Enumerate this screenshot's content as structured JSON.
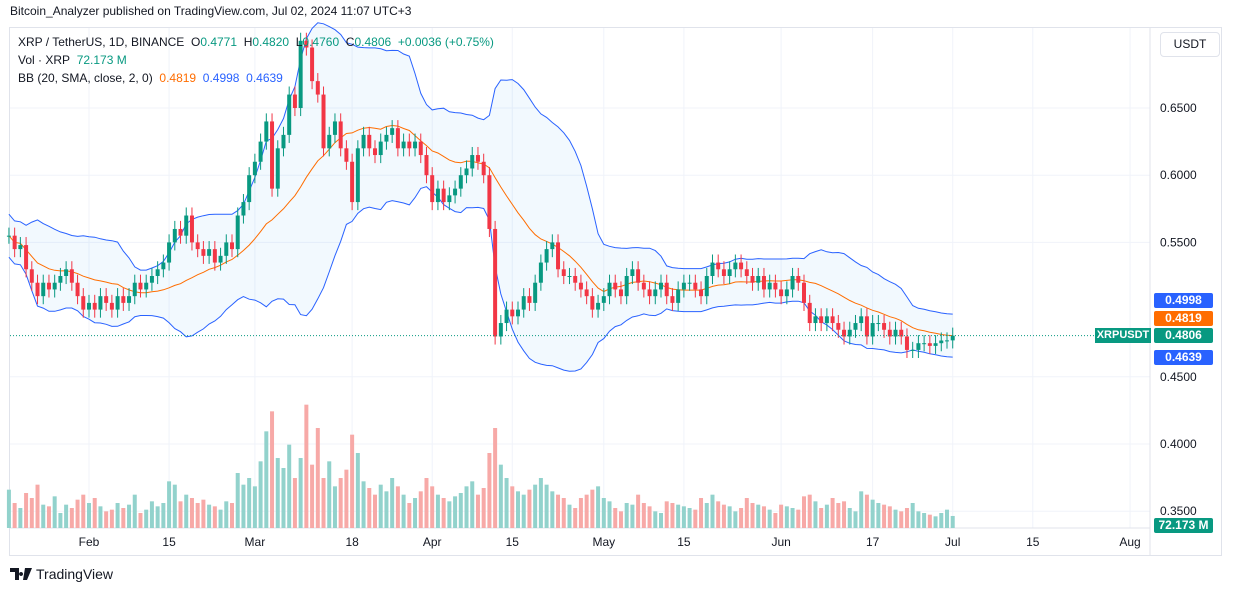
{
  "publisher_line": "Bitcoin_Analyzer published on TradingView.com, Jul 02, 2024 11:07 UTC+3",
  "legend": {
    "symbol": "XRP / TetherUS, 1D, BINANCE",
    "o_label": "O",
    "o": "0.4771",
    "h_label": "H",
    "h": "0.4820",
    "l_label": "L",
    "l": "0.4760",
    "c_label": "C",
    "c": "0.4806",
    "change": "+0.0036 (+0.75%)",
    "vol_label": "Vol · XRP",
    "vol": "72.173 M",
    "bb_label": "BB (20, SMA, close, 2, 0)",
    "bb_basis": "0.4819",
    "bb_upper": "0.4998",
    "bb_lower": "0.4639"
  },
  "currency_button": "USDT",
  "price_tags": {
    "upper": "0.4998",
    "basis": "0.4819",
    "last": "0.4806",
    "lower": "0.4639",
    "symbol": "XRPUSDT",
    "volume": "72.173 M"
  },
  "footer_logo": "TradingView",
  "colors": {
    "up": "#089981",
    "down": "#f23645",
    "bb_band": "#2962ff",
    "bb_basis": "#ff6d00",
    "vol_up": "#92d2cc",
    "vol_down": "#f7a9a7"
  },
  "chart_data": {
    "type": "candlestick",
    "title": "XRP / TetherUS, 1D, BINANCE",
    "start_date": "2024-01-18",
    "end_date": "2024-07-02",
    "y_ticks": [
      "0.6500",
      "0.6000",
      "0.5500",
      "0.4500",
      "0.4000",
      "0.3500"
    ],
    "x_ticks": [
      "Feb",
      "15",
      "Mar",
      "18",
      "Apr",
      "15",
      "May",
      "15",
      "Jun",
      "17",
      "Jul",
      "15",
      "Aug"
    ],
    "ylim": [
      0.33,
      0.75
    ],
    "grid": true,
    "indicator": "Bollinger Bands (20, 2)",
    "close": [
      0.555,
      0.545,
      0.548,
      0.53,
      0.52,
      0.51,
      0.52,
      0.515,
      0.52,
      0.525,
      0.53,
      0.52,
      0.51,
      0.5,
      0.505,
      0.5,
      0.51,
      0.505,
      0.5,
      0.51,
      0.505,
      0.51,
      0.52,
      0.515,
      0.52,
      0.525,
      0.53,
      0.535,
      0.55,
      0.56,
      0.555,
      0.57,
      0.55,
      0.545,
      0.54,
      0.545,
      0.535,
      0.54,
      0.55,
      0.545,
      0.57,
      0.58,
      0.6,
      0.61,
      0.625,
      0.64,
      0.59,
      0.62,
      0.63,
      0.66,
      0.65,
      0.7,
      0.695,
      0.67,
      0.66,
      0.62,
      0.63,
      0.64,
      0.62,
      0.61,
      0.58,
      0.62,
      0.63,
      0.62,
      0.615,
      0.625,
      0.63,
      0.635,
      0.62,
      0.625,
      0.62,
      0.625,
      0.615,
      0.6,
      0.58,
      0.59,
      0.58,
      0.585,
      0.59,
      0.6,
      0.605,
      0.615,
      0.61,
      0.6,
      0.56,
      0.48,
      0.49,
      0.5,
      0.495,
      0.5,
      0.51,
      0.505,
      0.52,
      0.535,
      0.545,
      0.55,
      0.53,
      0.525,
      0.525,
      0.52,
      0.515,
      0.51,
      0.5,
      0.505,
      0.51,
      0.52,
      0.515,
      0.51,
      0.525,
      0.53,
      0.52,
      0.515,
      0.51,
      0.515,
      0.52,
      0.51,
      0.505,
      0.515,
      0.52,
      0.52,
      0.515,
      0.51,
      0.525,
      0.535,
      0.53,
      0.525,
      0.53,
      0.535,
      0.53,
      0.525,
      0.52,
      0.525,
      0.515,
      0.52,
      0.515,
      0.51,
      0.515,
      0.525,
      0.52,
      0.505,
      0.49,
      0.495,
      0.49,
      0.495,
      0.49,
      0.485,
      0.48,
      0.485,
      0.49,
      0.495,
      0.48,
      0.49,
      0.49,
      0.485,
      0.48,
      0.485,
      0.48,
      0.47,
      0.47,
      0.475,
      0.475,
      0.473,
      0.475,
      0.477,
      0.4771,
      0.4806
    ],
    "volume_millions": [
      230,
      150,
      120,
      210,
      180,
      260,
      140,
      130,
      190,
      90,
      140,
      120,
      170,
      200,
      150,
      180,
      130,
      100,
      110,
      150,
      120,
      140,
      200,
      90,
      110,
      160,
      130,
      150,
      280,
      260,
      160,
      200,
      180,
      150,
      170,
      140,
      130,
      110,
      160,
      150,
      330,
      260,
      300,
      250,
      400,
      580,
      700,
      420,
      360,
      500,
      300,
      420,
      740,
      380,
      600,
      300,
      400,
      250,
      300,
      350,
      560,
      450,
      280,
      240,
      200,
      260,
      220,
      300,
      250,
      200,
      150,
      180,
      220,
      300,
      250,
      200,
      180,
      160,
      190,
      210,
      250,
      280,
      200,
      240,
      450,
      600,
      380,
      300,
      250,
      220,
      200,
      230,
      260,
      300,
      260,
      220,
      200,
      180,
      140,
      120,
      180,
      200,
      230,
      250,
      180,
      160,
      120,
      100,
      150,
      140,
      200,
      150,
      130,
      100,
      90,
      160,
      150,
      140,
      130,
      120,
      110,
      180,
      150,
      200,
      160,
      140,
      130,
      100,
      120,
      180,
      150,
      140,
      130,
      110,
      90,
      140,
      130,
      120,
      110,
      190,
      200,
      160,
      120,
      140,
      180,
      150,
      160,
      120,
      100,
      220,
      200,
      170,
      150,
      140,
      130,
      110,
      100,
      120,
      150,
      100,
      90,
      80,
      70,
      90,
      110,
      72.173
    ]
  }
}
